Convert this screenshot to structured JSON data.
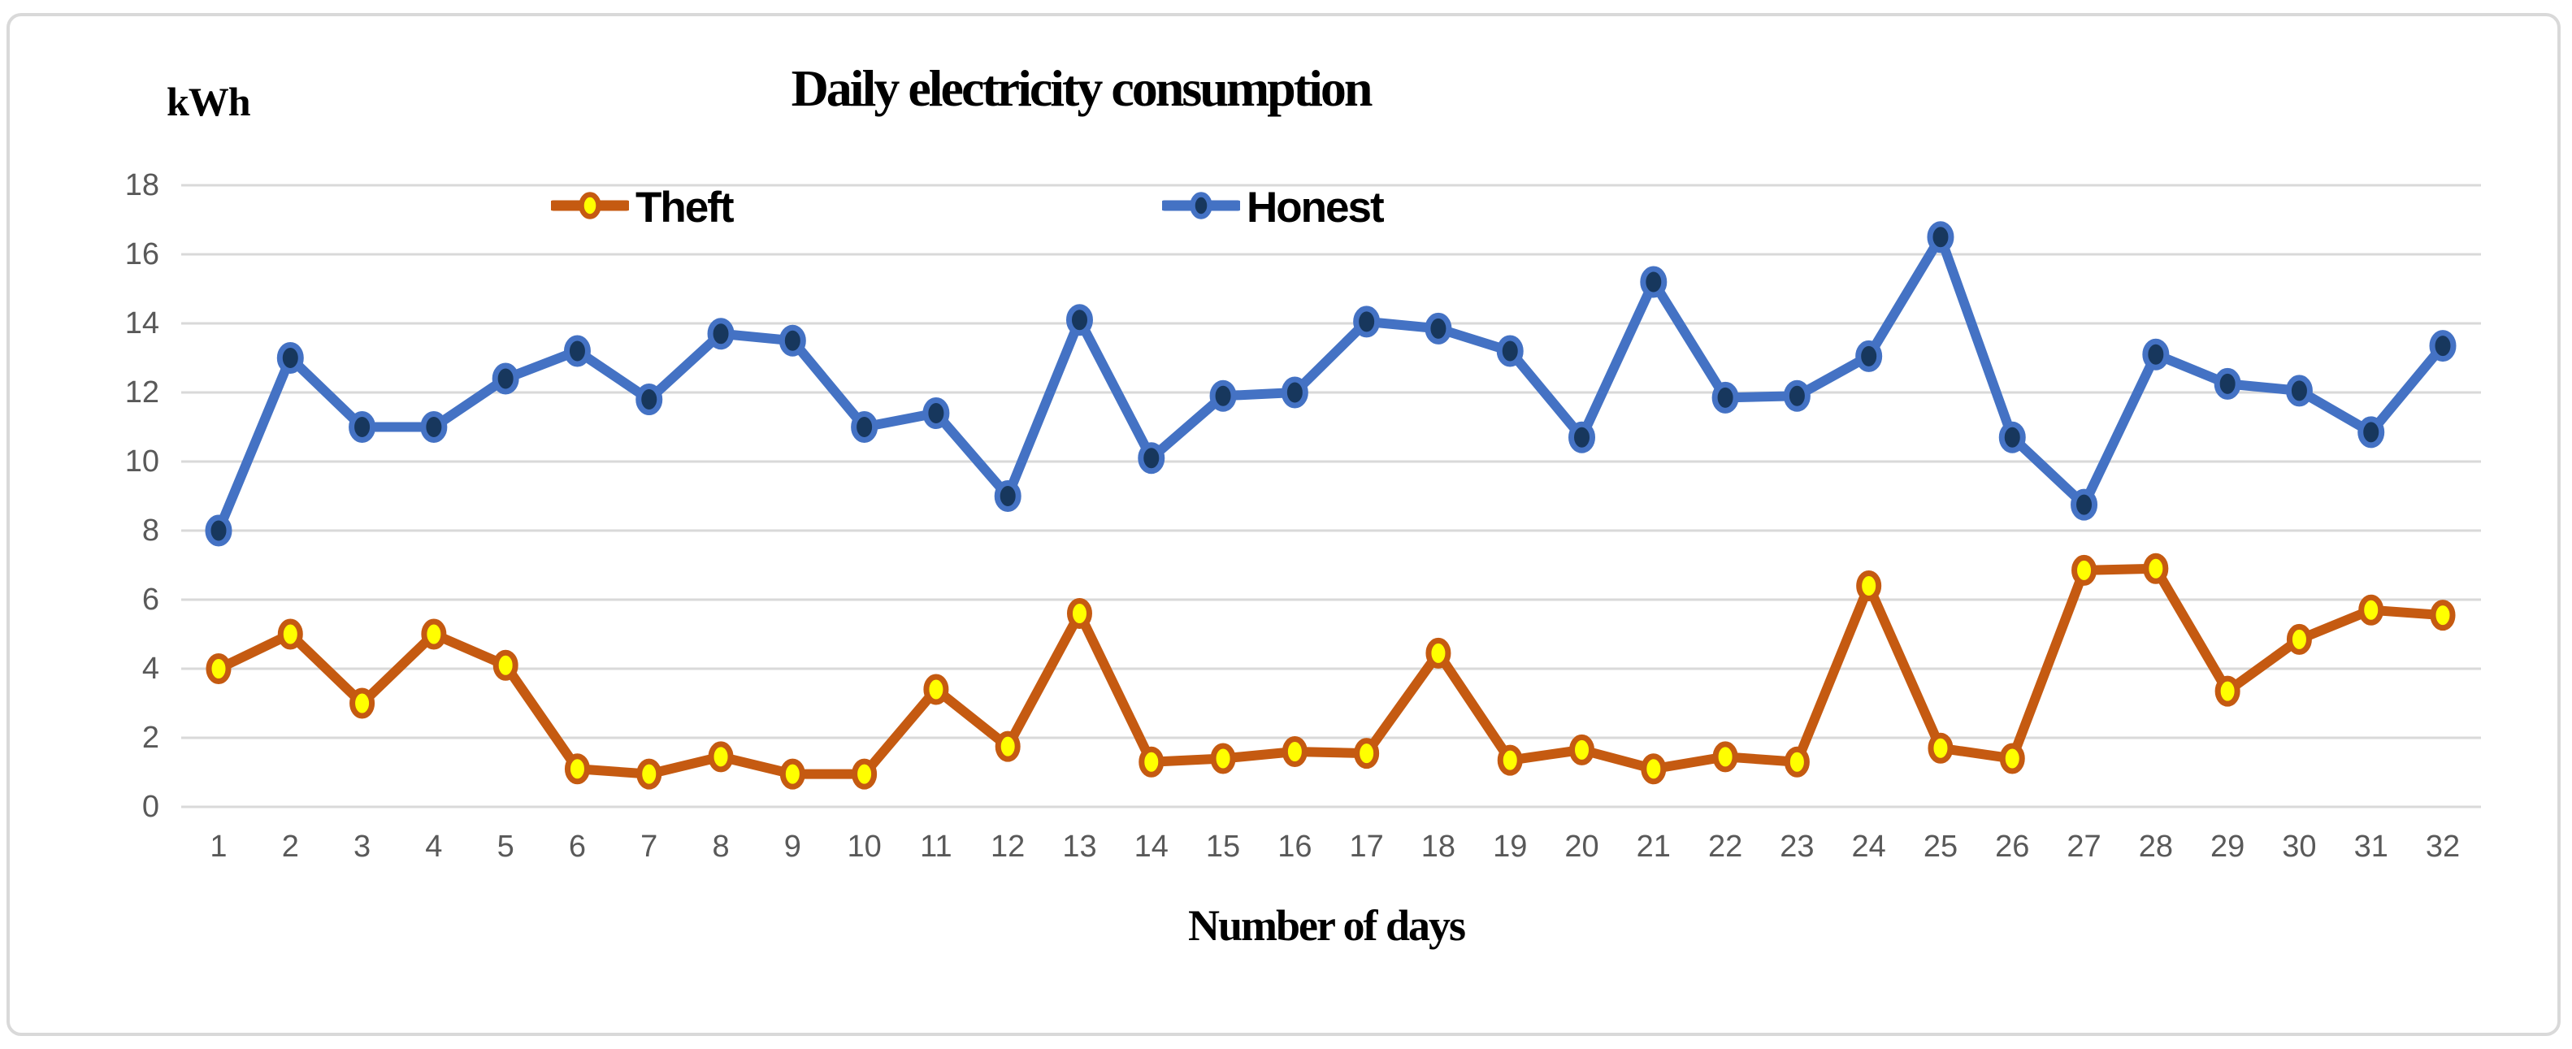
{
  "title": "Daily electricity consumption",
  "y_unit_label": "kWh",
  "x_axis_label": "Number of days",
  "legend": {
    "theft_label": "Theft",
    "honest_label": "Honest"
  },
  "colors": {
    "theft_line": "#C55A11",
    "theft_marker_fill": "#FFFF00",
    "honest_line": "#4472C4",
    "honest_marker_fill": "#17375D",
    "gridline": "#D9D9D9",
    "tick_text": "#595959",
    "frame_border": "#D9D9D9",
    "text": "#000000",
    "background": "#FFFFFF"
  },
  "chart_data": {
    "type": "line",
    "title": "Daily electricity consumption",
    "xlabel": "Number of days",
    "ylabel": "kWh",
    "categories": [
      1,
      2,
      3,
      4,
      5,
      6,
      7,
      8,
      9,
      10,
      11,
      12,
      13,
      14,
      15,
      16,
      17,
      18,
      19,
      20,
      21,
      22,
      23,
      24,
      25,
      26,
      27,
      28,
      29,
      30,
      31,
      32
    ],
    "series": [
      {
        "name": "Theft",
        "values": [
          4.0,
          5.0,
          3.0,
          5.0,
          4.1,
          1.1,
          0.95,
          1.45,
          0.95,
          0.95,
          3.4,
          1.75,
          5.6,
          1.3,
          1.4,
          1.6,
          1.55,
          4.45,
          1.35,
          1.65,
          1.1,
          1.45,
          1.3,
          6.4,
          1.7,
          1.4,
          6.85,
          6.9,
          3.35,
          4.85,
          5.7,
          5.55
        ]
      },
      {
        "name": "Honest",
        "values": [
          8.0,
          13.0,
          11.0,
          11.0,
          12.4,
          13.2,
          11.8,
          13.7,
          13.5,
          11.0,
          11.4,
          9.0,
          14.1,
          10.1,
          11.9,
          12.0,
          14.05,
          13.85,
          13.2,
          10.7,
          15.2,
          11.85,
          11.9,
          13.05,
          16.5,
          10.7,
          8.75,
          13.1,
          12.25,
          12.05,
          10.85,
          13.35
        ]
      }
    ],
    "ylim": [
      0,
      18
    ],
    "yticks": [
      0,
      2,
      4,
      6,
      8,
      10,
      12,
      14,
      16,
      18
    ],
    "grid": true,
    "legend_position": "top-inside"
  }
}
